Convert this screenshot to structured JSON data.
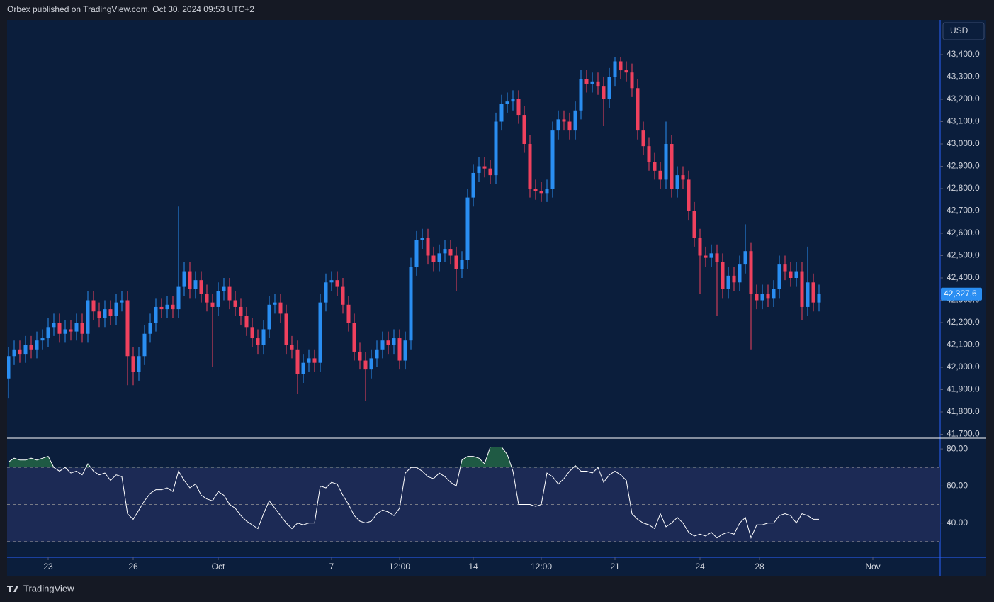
{
  "header": {
    "text": "Orbex published on TradingView.com, Oct 30, 2024 09:53 UTC+2"
  },
  "footer": {
    "brand": "TradingView"
  },
  "chart_data": [
    {
      "type": "candlestick",
      "currency": "USD",
      "up_color": "#2a8ef2",
      "down_color": "#f0415e",
      "open": [
        41950,
        42050,
        42080,
        42060,
        42100,
        42080,
        42120,
        42130,
        42180,
        42200,
        42150,
        42170,
        42160,
        42200,
        42150,
        42300,
        42250,
        42220,
        42260,
        42230,
        42290,
        42300,
        42050,
        41980,
        42050,
        42150,
        42200,
        42270,
        42260,
        42280,
        42260,
        42360,
        42430,
        42350,
        42390,
        42330,
        42290,
        42270,
        42340,
        42360,
        42300,
        42270,
        42230,
        42180,
        42130,
        42100,
        42170,
        42280,
        42290,
        42240,
        42100,
        42080,
        41970,
        42020,
        42040,
        42020,
        42290,
        42380,
        42390,
        42360,
        42280,
        42200,
        42070,
        42030,
        41990,
        42040,
        42080,
        42120,
        42100,
        42130,
        42030,
        42120,
        42450,
        42570,
        42580,
        42500,
        42470,
        42510,
        42530,
        42500,
        42440,
        42480,
        42760,
        42870,
        42900,
        42890,
        42860,
        43100,
        43180,
        43190,
        43200,
        43130,
        43000,
        42800,
        42790,
        42780,
        42800,
        43060,
        43110,
        43100,
        43060,
        43150,
        43290,
        43270,
        43280,
        43260,
        43200,
        43300,
        43370,
        43330,
        43320,
        43250,
        43060,
        42990,
        42920,
        42880,
        42840,
        43000,
        42800,
        42860,
        42840,
        42700,
        42580,
        42500,
        42490,
        42510,
        42470,
        42350,
        42410,
        42380,
        42460,
        42520,
        42330,
        42300,
        42330,
        42310,
        42350,
        42460,
        42430,
        42400,
        42430,
        42270,
        42380,
        42290
      ],
      "high": [
        42090,
        42120,
        42120,
        42140,
        42140,
        42160,
        42170,
        42220,
        42240,
        42240,
        42210,
        42210,
        42240,
        42240,
        42340,
        42340,
        42290,
        42300,
        42300,
        42330,
        42340,
        42340,
        42090,
        42090,
        42190,
        42240,
        42310,
        42310,
        42320,
        42320,
        42720,
        42470,
        42470,
        42430,
        42430,
        42370,
        42330,
        42380,
        42400,
        42400,
        42340,
        42310,
        42270,
        42220,
        42170,
        42210,
        42320,
        42330,
        42330,
        42280,
        42140,
        42120,
        42060,
        42080,
        42080,
        42330,
        42420,
        42430,
        42430,
        42400,
        42320,
        42240,
        42110,
        42070,
        42080,
        42120,
        42160,
        42160,
        42170,
        42170,
        42160,
        42490,
        42610,
        42620,
        42620,
        42540,
        42550,
        42570,
        42570,
        42540,
        42520,
        42800,
        42910,
        42940,
        42940,
        42930,
        43140,
        43220,
        43230,
        43240,
        43240,
        43170,
        43040,
        42840,
        42830,
        42840,
        43100,
        43150,
        43150,
        43140,
        43190,
        43330,
        43330,
        43320,
        43320,
        43300,
        43340,
        43390,
        43390,
        43370,
        43360,
        43290,
        43100,
        43030,
        42960,
        42920,
        43100,
        43040,
        42900,
        42900,
        42880,
        42740,
        42620,
        42540,
        42550,
        42550,
        42510,
        42450,
        42450,
        42500,
        42640,
        42560,
        42370,
        42370,
        42370,
        42390,
        42500,
        42500,
        42470,
        42470,
        42470,
        42540,
        42420,
        42370
      ],
      "low": [
        41860,
        42010,
        42020,
        42020,
        42040,
        42040,
        42080,
        42090,
        42140,
        42110,
        42110,
        42120,
        42120,
        42110,
        42110,
        42210,
        42180,
        42180,
        42190,
        42190,
        42250,
        41920,
        41920,
        41940,
        42010,
        42110,
        42160,
        42220,
        42220,
        42220,
        42220,
        42320,
        42310,
        42310,
        42290,
        42250,
        42000,
        42230,
        42300,
        42260,
        42230,
        42190,
        42140,
        42090,
        42060,
        42060,
        42130,
        42240,
        42200,
        42060,
        42040,
        41880,
        41930,
        41980,
        41980,
        41980,
        42250,
        42340,
        42320,
        42240,
        42160,
        42030,
        41990,
        41850,
        41950,
        42000,
        42040,
        42060,
        42060,
        41990,
        41990,
        42080,
        42410,
        42530,
        42460,
        42430,
        42430,
        42470,
        42460,
        42340,
        42400,
        42440,
        42720,
        42830,
        42850,
        42820,
        42820,
        43060,
        43140,
        43150,
        43090,
        42960,
        42760,
        42750,
        42740,
        42740,
        42760,
        43020,
        43060,
        43020,
        43020,
        43110,
        43230,
        43230,
        43220,
        43080,
        43160,
        43260,
        43290,
        43280,
        43210,
        43020,
        42950,
        42880,
        42840,
        42800,
        42800,
        42760,
        42760,
        42800,
        42660,
        42540,
        42330,
        42450,
        42450,
        42230,
        42310,
        42310,
        42340,
        42340,
        42420,
        42080,
        42260,
        42260,
        42270,
        42270,
        42310,
        42390,
        42360,
        42360,
        42210,
        42230,
        42250,
        42250
      ],
      "close": [
        42050,
        42080,
        42060,
        42100,
        42080,
        42120,
        42130,
        42180,
        42200,
        42150,
        42170,
        42160,
        42200,
        42150,
        42300,
        42250,
        42220,
        42260,
        42230,
        42290,
        42300,
        42050,
        41980,
        42050,
        42150,
        42200,
        42270,
        42260,
        42280,
        42260,
        42360,
        42430,
        42350,
        42390,
        42330,
        42290,
        42270,
        42340,
        42360,
        42300,
        42270,
        42230,
        42180,
        42130,
        42100,
        42170,
        42280,
        42290,
        42240,
        42100,
        42080,
        41970,
        42020,
        42040,
        42020,
        42290,
        42380,
        42390,
        42360,
        42280,
        42200,
        42070,
        42030,
        41990,
        42040,
        42080,
        42120,
        42100,
        42130,
        42030,
        42120,
        42450,
        42570,
        42580,
        42500,
        42470,
        42510,
        42530,
        42500,
        42440,
        42480,
        42760,
        42870,
        42900,
        42890,
        42860,
        43100,
        43180,
        43190,
        43200,
        43130,
        43000,
        42800,
        42790,
        42780,
        42800,
        43060,
        43110,
        43100,
        43060,
        43150,
        43290,
        43270,
        43280,
        43260,
        43200,
        43300,
        43370,
        43330,
        43320,
        43250,
        43060,
        42990,
        42920,
        42880,
        42840,
        43000,
        42800,
        42860,
        42840,
        42700,
        42580,
        42500,
        42490,
        42510,
        42470,
        42350,
        42410,
        42380,
        42460,
        42520,
        42330,
        42300,
        42330,
        42310,
        42350,
        42460,
        42430,
        42400,
        42430,
        42270,
        42380,
        42290,
        42327.6
      ],
      "last_label": "42,327.6",
      "last_color": "#2a8ef2",
      "ylim": [
        41685.7,
        43555.6
      ],
      "yticks": [
        {
          "value": 41700,
          "label": "41,700.0"
        },
        {
          "value": 41800,
          "label": "41,800.0"
        },
        {
          "value": 41900,
          "label": "41,900.0"
        },
        {
          "value": 42000,
          "label": "42,000.0"
        },
        {
          "value": 42100,
          "label": "42,100.0"
        },
        {
          "value": 42200,
          "label": "42,200.0"
        },
        {
          "value": 42300,
          "label": "42,300.0"
        },
        {
          "value": 42400,
          "label": "42,400.0"
        },
        {
          "value": 42500,
          "label": "42,500.0"
        },
        {
          "value": 42600,
          "label": "42,600.0"
        },
        {
          "value": 42700,
          "label": "42,700.0"
        },
        {
          "value": 42800,
          "label": "42,800.0"
        },
        {
          "value": 42900,
          "label": "42,900.0"
        },
        {
          "value": 43000,
          "label": "43,000.0"
        },
        {
          "value": 43100,
          "label": "43,100.0"
        },
        {
          "value": 43200,
          "label": "43,200.0"
        },
        {
          "value": 43300,
          "label": "43,300.0"
        },
        {
          "value": 43400,
          "label": "43,400.0"
        }
      ],
      "xlim": [
        -0.25,
        164.375
      ],
      "xticks": [
        {
          "value": 7,
          "label": "23"
        },
        {
          "value": 22,
          "label": "26"
        },
        {
          "value": 37,
          "label": "Oct"
        },
        {
          "value": 57,
          "label": "7"
        },
        {
          "value": 69,
          "label": "12:00"
        },
        {
          "value": 82,
          "label": "14"
        },
        {
          "value": 94,
          "label": "12:00"
        },
        {
          "value": 107,
          "label": "21"
        },
        {
          "value": 122,
          "label": "24"
        },
        {
          "value": 132.5,
          "label": "28"
        },
        {
          "value": 152.5,
          "label": "Nov"
        }
      ],
      "grid": false
    },
    {
      "type": "line",
      "color": "#ffffff",
      "values": [
        73,
        75,
        74,
        74,
        75,
        74,
        75,
        76,
        70,
        68,
        70,
        67,
        68,
        66,
        72,
        68,
        66,
        67,
        63,
        66,
        65,
        45,
        42,
        47,
        52,
        56,
        58,
        58,
        59,
        57,
        68,
        63,
        59,
        61,
        55,
        53,
        52,
        57,
        55,
        50,
        48,
        44,
        41,
        39,
        37,
        45,
        52,
        48,
        44,
        40,
        37,
        40,
        39,
        40,
        40,
        60,
        59,
        62,
        61,
        55,
        50,
        44,
        41,
        40,
        41,
        45,
        47,
        46,
        44,
        48,
        67,
        70,
        70,
        68,
        65,
        64,
        67,
        65,
        62,
        60,
        74,
        76,
        76,
        75,
        72,
        81,
        81,
        81,
        77,
        68,
        50,
        50,
        50,
        49,
        50,
        67,
        65,
        61,
        64,
        68,
        71,
        68,
        68,
        67,
        70,
        62,
        66,
        68,
        66,
        63,
        45,
        42,
        40,
        39,
        37,
        45,
        38,
        40,
        43,
        40,
        35,
        33,
        34,
        33,
        35,
        32,
        34,
        35,
        34,
        40,
        43,
        32,
        39,
        39,
        40,
        40,
        44,
        45,
        44,
        40,
        45,
        44,
        42,
        42
      ],
      "levels": [
        30,
        50,
        70
      ],
      "band_color": "#1c2a55",
      "overbought_color": "#1f5a44",
      "ylim": [
        21.5,
        85.4
      ],
      "yticks": [
        {
          "value": 40,
          "label": "40.00"
        },
        {
          "value": 60,
          "label": "60.00"
        },
        {
          "value": 80,
          "label": "80.00"
        }
      ]
    }
  ]
}
